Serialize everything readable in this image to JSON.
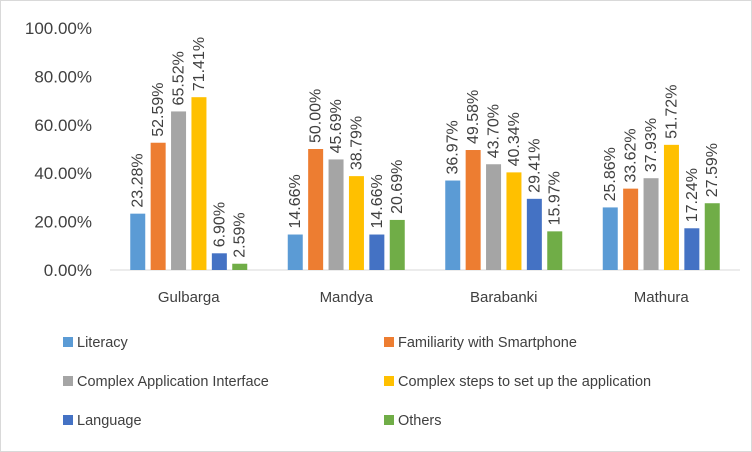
{
  "chart_data": {
    "type": "bar",
    "categories": [
      "Gulbarga",
      "Mandya",
      "Barabanki",
      "Mathura"
    ],
    "series": [
      {
        "name": "Literacy",
        "color": "#5b9bd5",
        "values": [
          23.28,
          14.66,
          36.97,
          25.86
        ],
        "labels": [
          "23.28%",
          "14.66%",
          "36.97%",
          "25.86%"
        ]
      },
      {
        "name": "Familiarity with Smartphone",
        "color": "#ed7d31",
        "values": [
          52.59,
          50.0,
          49.58,
          33.62
        ],
        "labels": [
          "52.59%",
          "50.00%",
          "49.58%",
          "33.62%"
        ]
      },
      {
        "name": "Complex Application Interface",
        "color": "#a5a5a5",
        "values": [
          65.52,
          45.69,
          43.7,
          37.93
        ],
        "labels": [
          "65.52%",
          "45.69%",
          "43.70%",
          "37.93%"
        ]
      },
      {
        "name": "Complex steps to set up the application",
        "color": "#ffc000",
        "values": [
          71.41,
          38.79,
          40.34,
          51.72
        ],
        "labels": [
          "71.41%",
          "38.79%",
          "40.34%",
          "51.72%"
        ]
      },
      {
        "name": "Language",
        "color": "#4472c4",
        "values": [
          6.9,
          14.66,
          29.41,
          17.24
        ],
        "labels": [
          "6.90%",
          "14.66%",
          "29.41%",
          "17.24%"
        ]
      },
      {
        "name": "Others",
        "color": "#70ad47",
        "values": [
          2.59,
          20.69,
          15.97,
          27.59
        ],
        "labels": [
          "2.59%",
          "20.69%",
          "15.97%",
          "27.59%"
        ]
      }
    ],
    "yticks": [
      "0.00%",
      "20.00%",
      "40.00%",
      "60.00%",
      "80.00%",
      "100.00%"
    ],
    "ylim": [
      0,
      100
    ],
    "grid": false,
    "legend_position": "bottom"
  }
}
